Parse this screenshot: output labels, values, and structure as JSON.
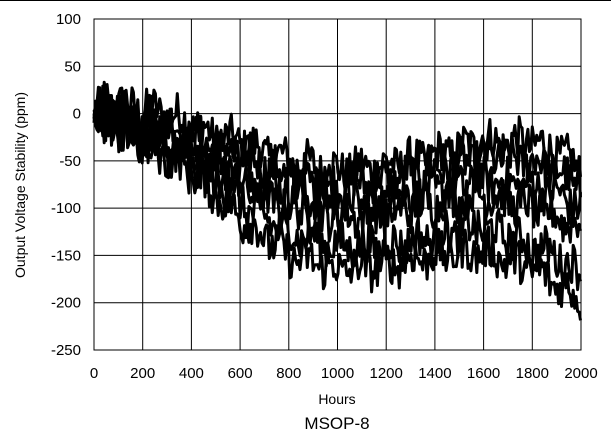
{
  "chart_data": {
    "type": "line",
    "title": "",
    "xlabel": "Hours",
    "ylabel": "Output Voltage Stability (ppm)",
    "caption": "MSOP-8",
    "xlim": [
      0,
      2000
    ],
    "ylim": [
      -250,
      100
    ],
    "xticks": [
      0,
      200,
      400,
      600,
      800,
      1000,
      1200,
      1400,
      1600,
      1800,
      2000
    ],
    "yticks": [
      100,
      50,
      0,
      -50,
      -100,
      -150,
      -200,
      -250
    ],
    "grid": true,
    "line_color": "#000000",
    "series": [
      {
        "x": [
          0,
          100,
          200,
          300,
          400,
          500,
          600,
          700,
          800,
          1000,
          1200,
          1400,
          1600,
          1800,
          1900,
          2000
        ],
        "values": [
          0,
          10,
          5,
          0,
          -10,
          -25,
          -30,
          -40,
          -50,
          -60,
          -55,
          -45,
          -30,
          -30,
          -40,
          -60
        ]
      },
      {
        "x": [
          0,
          100,
          200,
          300,
          400,
          500,
          600,
          700,
          800,
          1000,
          1200,
          1400,
          1600,
          1800,
          1900,
          2000
        ],
        "values": [
          0,
          5,
          0,
          -10,
          -25,
          -35,
          -45,
          -55,
          -65,
          -75,
          -70,
          -60,
          -45,
          -50,
          -60,
          -80
        ]
      },
      {
        "x": [
          0,
          100,
          200,
          300,
          400,
          500,
          600,
          700,
          800,
          1000,
          1200,
          1400,
          1600,
          1800,
          1900,
          2000
        ],
        "values": [
          0,
          -5,
          -10,
          -20,
          -35,
          -50,
          -60,
          -70,
          -80,
          -95,
          -90,
          -80,
          -70,
          -75,
          -85,
          -100
        ]
      },
      {
        "x": [
          0,
          100,
          200,
          300,
          400,
          500,
          600,
          700,
          800,
          1000,
          1200,
          1400,
          1600,
          1800,
          1900,
          2000
        ],
        "values": [
          0,
          -10,
          -20,
          -30,
          -45,
          -60,
          -75,
          -90,
          -100,
          -110,
          -105,
          -95,
          -85,
          -100,
          -110,
          -120
        ]
      },
      {
        "x": [
          0,
          100,
          200,
          300,
          400,
          500,
          600,
          700,
          800,
          1000,
          1200,
          1400,
          1600,
          1800,
          1900,
          2000
        ],
        "values": [
          0,
          -15,
          -25,
          -40,
          -55,
          -75,
          -95,
          -110,
          -125,
          -140,
          -140,
          -130,
          -120,
          -140,
          -150,
          -170
        ]
      },
      {
        "x": [
          0,
          100,
          200,
          300,
          400,
          500,
          600,
          700,
          800,
          1000,
          1200,
          1400,
          1600,
          1800,
          1900,
          2000
        ],
        "values": [
          0,
          -20,
          -30,
          -45,
          -60,
          -85,
          -110,
          -130,
          -150,
          -165,
          -160,
          -150,
          -145,
          -165,
          -180,
          -195
        ]
      }
    ]
  }
}
